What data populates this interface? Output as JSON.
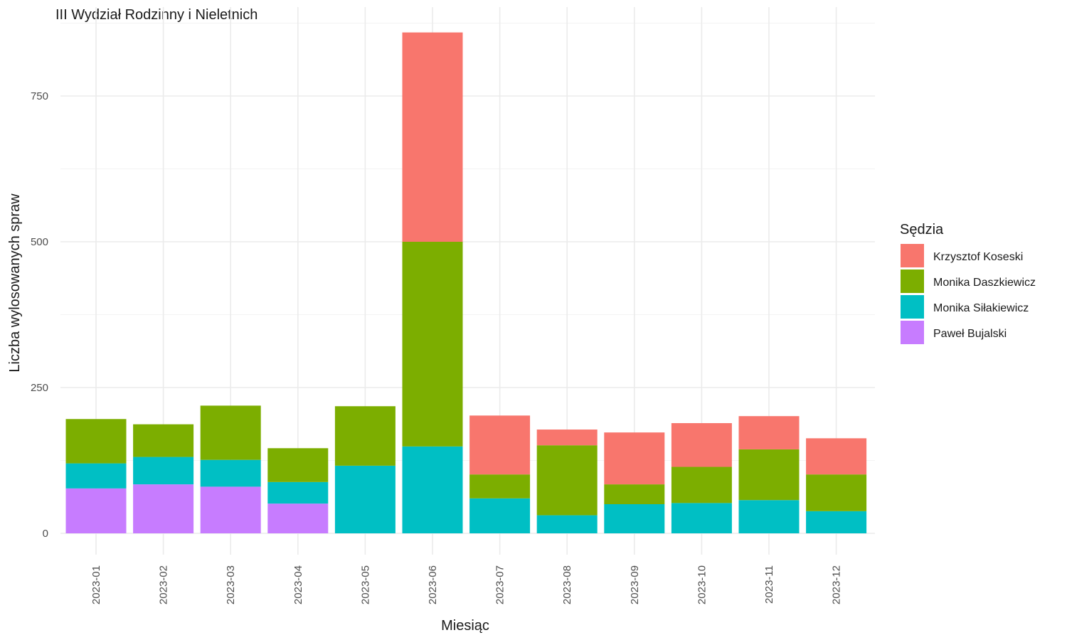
{
  "chart_data": {
    "type": "bar",
    "stacked": true,
    "title": "III Wydział Rodzinny i Nieletnich",
    "xlabel": "Miesiąc",
    "ylabel": "Liczba wylosowanych spraw",
    "ylim": [
      0,
      875
    ],
    "yticks": [
      0,
      250,
      500,
      750
    ],
    "grid": true,
    "legend": {
      "title": "Sędzia",
      "placement": "right"
    },
    "categories": [
      "2023-01",
      "2023-02",
      "2023-03",
      "2023-04",
      "2023-05",
      "2023-06",
      "2023-07",
      "2023-08",
      "2023-09",
      "2023-10",
      "2023-11",
      "2023-12"
    ],
    "series": [
      {
        "name": "Paweł Bujalski",
        "color": "#C77CFF",
        "values": [
          77,
          84,
          80,
          51,
          0,
          0,
          0,
          0,
          0,
          0,
          0,
          0
        ]
      },
      {
        "name": "Monika Siłakiewicz",
        "color": "#00BFC4",
        "values": [
          43,
          47,
          46,
          37,
          116,
          149,
          60,
          31,
          50,
          52,
          57,
          38
        ]
      },
      {
        "name": "Monika Daszkiewicz",
        "color": "#7CAE00",
        "values": [
          76,
          56,
          93,
          58,
          102,
          351,
          41,
          120,
          34,
          62,
          87,
          63
        ]
      },
      {
        "name": "Krzysztof Koseski",
        "color": "#F8766D",
        "values": [
          0,
          0,
          0,
          0,
          0,
          359,
          101,
          27,
          89,
          75,
          57,
          62
        ]
      }
    ],
    "legend_order": [
      "Krzysztof Koseski",
      "Monika Daszkiewicz",
      "Monika Siłakiewicz",
      "Paweł Bujalski"
    ]
  }
}
